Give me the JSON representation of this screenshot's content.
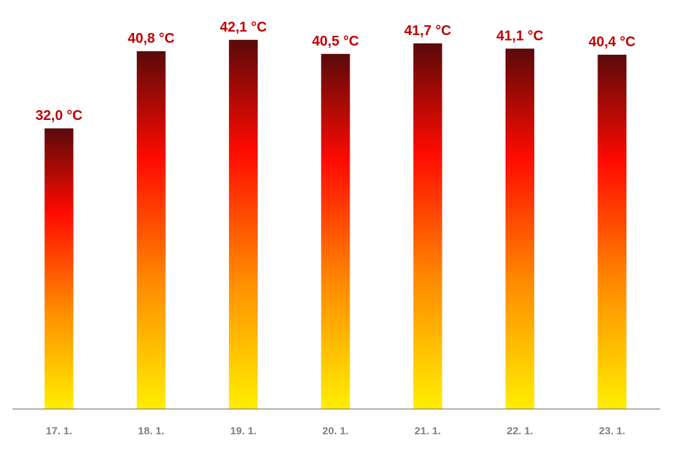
{
  "chart_data": {
    "type": "bar",
    "title": "",
    "xlabel": "",
    "ylabel": "",
    "categories": [
      "17. 1.",
      "18. 1.",
      "19. 1.",
      "20. 1.",
      "21. 1.",
      "22. 1.",
      "23. 1."
    ],
    "values": [
      32.0,
      40.8,
      42.1,
      40.5,
      41.7,
      41.1,
      40.4
    ],
    "data_labels": [
      "32,0 °C",
      "40,8 °C",
      "42,1 °C",
      "40,5 °C",
      "41,7 °C",
      "41,1 °C",
      "40,4 °C"
    ],
    "ylim": [
      0,
      43
    ],
    "grid": false,
    "legend": "none"
  },
  "colors": {
    "label_text": "#c00000",
    "tick_text": "#7f7f7f",
    "axis_line": "#7f7f7f",
    "bar_gradient": [
      "#5a0a0a",
      "#ff0a00",
      "#ff8c00",
      "#ffee00"
    ]
  }
}
